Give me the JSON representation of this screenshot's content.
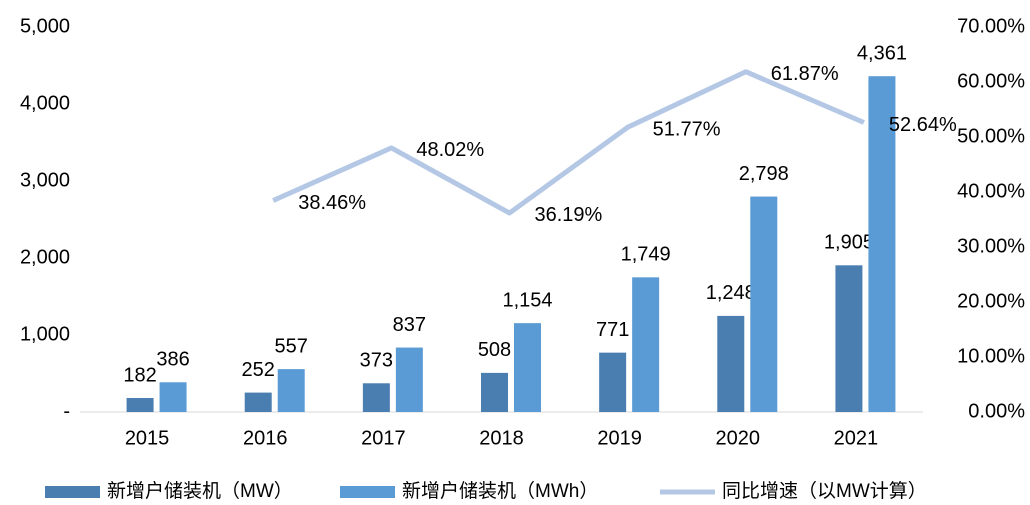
{
  "chart_data": {
    "type": "bar-line",
    "categories": [
      "2015",
      "2016",
      "2017",
      "2018",
      "2019",
      "2020",
      "2021"
    ],
    "series": [
      {
        "name": "新增户储装机（MW）",
        "type": "bar",
        "color": "#4a7eb0",
        "values": [
          182,
          252,
          373,
          508,
          771,
          1248,
          1905
        ],
        "value_labels": [
          "182",
          "252",
          "373",
          "508",
          "771",
          "1,248",
          "1,905"
        ]
      },
      {
        "name": "新增户储装机（MWh）",
        "type": "bar",
        "color": "#5b9bd5",
        "values": [
          386,
          557,
          837,
          1154,
          1749,
          2798,
          4361
        ],
        "value_labels": [
          "386",
          "557",
          "837",
          "1,154",
          "1,749",
          "2,798",
          "4,361"
        ]
      },
      {
        "name": "同比增速（以MW计算）",
        "type": "line",
        "axis": "y2",
        "color": "#b4c8e6",
        "values": [
          null,
          38.46,
          48.02,
          36.19,
          51.77,
          61.87,
          52.64
        ],
        "value_labels": [
          null,
          "38.46%",
          "48.02%",
          "36.19%",
          "51.77%",
          "61.87%",
          "52.64%"
        ]
      }
    ],
    "ylim": [
      0,
      5000
    ],
    "yticks": [
      {
        "value": 0,
        "label": "-"
      },
      {
        "value": 1000,
        "label": "1,000"
      },
      {
        "value": 2000,
        "label": "2,000"
      },
      {
        "value": 3000,
        "label": "3,000"
      },
      {
        "value": 4000,
        "label": "4,000"
      },
      {
        "value": 5000,
        "label": "5,000"
      }
    ],
    "y2lim": [
      0,
      70
    ],
    "y2ticks": [
      {
        "value": 0,
        "label": "0.00%"
      },
      {
        "value": 10,
        "label": "10.00%"
      },
      {
        "value": 20,
        "label": "20.00%"
      },
      {
        "value": 30,
        "label": "30.00%"
      },
      {
        "value": 40,
        "label": "40.00%"
      },
      {
        "value": 50,
        "label": "50.00%"
      },
      {
        "value": 60,
        "label": "60.00%"
      },
      {
        "value": 70,
        "label": "70.00%"
      }
    ],
    "legend": "bottom"
  }
}
